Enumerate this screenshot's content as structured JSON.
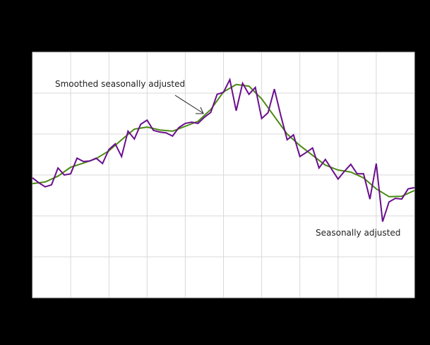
{
  "chart_data": {
    "type": "line",
    "title": "",
    "xlabel": "",
    "ylabel": "",
    "grid": true,
    "legend_position": "inline annotations",
    "ylim": [
      0,
      6
    ],
    "x_gridlines": 11,
    "y_gridlines": 7,
    "annotations": [
      {
        "text": "Smoothed seasonally adjusted",
        "target_series": "Smoothed seasonally adjusted",
        "arrow": true
      },
      {
        "text": "Seasonally adjusted",
        "target_series": "Seasonally adjusted",
        "arrow": false
      }
    ],
    "x": [
      0,
      1,
      2,
      3,
      4,
      5,
      6,
      7,
      8,
      9,
      10,
      11,
      12,
      13,
      14,
      15,
      16,
      17,
      18,
      19,
      20,
      21,
      22,
      23,
      24,
      25,
      26,
      27,
      28,
      29,
      30,
      31,
      32,
      33,
      34,
      35,
      36,
      37,
      38,
      39,
      40,
      41,
      42,
      43,
      44,
      45,
      46,
      47,
      48,
      49,
      50,
      51,
      52,
      53,
      54,
      55,
      56,
      57,
      58,
      59,
      60
    ],
    "series": [
      {
        "name": "Seasonally adjusted",
        "color": "#6a0f8e",
        "values": [
          2.93,
          2.81,
          2.71,
          2.76,
          3.17,
          3.0,
          3.03,
          3.41,
          3.33,
          3.34,
          3.41,
          3.28,
          3.62,
          3.76,
          3.45,
          4.07,
          3.88,
          4.24,
          4.34,
          4.09,
          4.05,
          4.03,
          3.95,
          4.16,
          4.26,
          4.29,
          4.26,
          4.41,
          4.53,
          4.97,
          5.02,
          5.33,
          4.57,
          5.24,
          4.97,
          5.14,
          4.38,
          4.52,
          5.1,
          4.45,
          3.86,
          3.98,
          3.45,
          3.55,
          3.66,
          3.17,
          3.38,
          3.14,
          2.9,
          3.09,
          3.26,
          3.03,
          3.03,
          2.41,
          3.28,
          1.86,
          2.34,
          2.43,
          2.41,
          2.66,
          2.69
        ]
      },
      {
        "name": "Smoothed seasonally adjusted",
        "color": "#4a8a10",
        "x": [
          0,
          2,
          4,
          6,
          8,
          10,
          12,
          14,
          16,
          18,
          20,
          22,
          24,
          26,
          28,
          30,
          32,
          34,
          36,
          38,
          40,
          42,
          44,
          46,
          48,
          50,
          52,
          54,
          56,
          58,
          60
        ],
        "values": [
          2.79,
          2.83,
          2.97,
          3.19,
          3.29,
          3.4,
          3.59,
          3.86,
          4.12,
          4.17,
          4.1,
          4.07,
          4.19,
          4.31,
          4.6,
          5.03,
          5.21,
          5.17,
          4.86,
          4.43,
          4.0,
          3.72,
          3.48,
          3.24,
          3.12,
          3.07,
          2.93,
          2.66,
          2.47,
          2.48,
          2.62
        ]
      }
    ]
  },
  "colors": {
    "background": "#000000",
    "plot_background": "#ffffff",
    "grid": "#d9d9d9",
    "seasonally_adjusted": "#6a0f8e",
    "smoothed": "#4a8a10",
    "annotation_text": "#222222"
  }
}
